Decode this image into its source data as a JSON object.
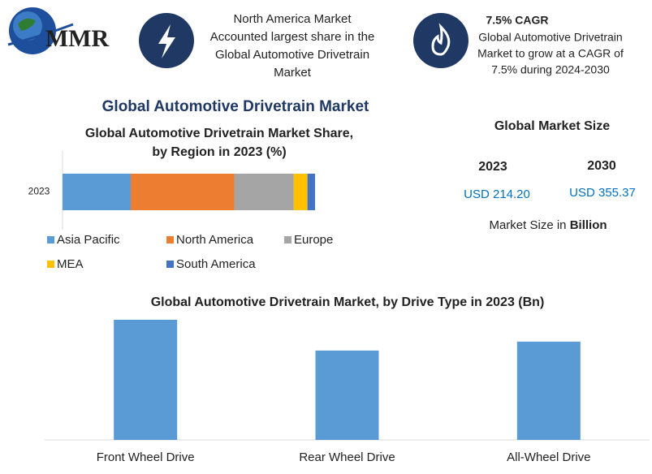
{
  "header": {
    "logo": "MMR",
    "highlight_1": [
      "North America Market",
      "Accounted largest share in the",
      "Global Automotive Drivetrain",
      "Market"
    ],
    "highlight_2_title": "7.5% CAGR",
    "highlight_2": [
      "Global Automotive Drivetrain",
      "Market to grow at a CAGR of",
      "7.5% during 2024-2030"
    ],
    "title": "Global Automotive Drivetrain Market"
  },
  "market_size": {
    "title": "Global Market Size",
    "years": [
      "2023",
      "2030"
    ],
    "values": [
      "USD 214.20",
      "USD 355.37"
    ],
    "note": "Market Size in",
    "note_bold": "Billion"
  },
  "chart_data": [
    {
      "type": "stacked_bar",
      "title": [
        "Global Automotive Drivetrain Market Share,",
        "by Region in 2023 (%)"
      ],
      "categories": [
        "2023"
      ],
      "series": [
        {
          "name": "Asia Pacific",
          "color": "#5b9bd5",
          "values": [
            27
          ]
        },
        {
          "name": "North America",
          "color": "#ed7d31",
          "values": [
            41
          ]
        },
        {
          "name": "Europe",
          "color": "#a5a5a5",
          "values": [
            23.5
          ]
        },
        {
          "name": "MEA",
          "color": "#ffc000",
          "values": [
            5.5
          ]
        },
        {
          "name": "South America",
          "color": "#4472c4",
          "values": [
            3
          ]
        }
      ]
    },
    {
      "type": "bar",
      "title": [
        "Global Automotive Drivetrain Market, by Drive Type  in 2023 (Bn)"
      ],
      "categories": [
        "Front Wheel Drive",
        "Rear Wheel Drive",
        "All-Wheel Drive"
      ],
      "values": [
        83.6,
        62.2,
        68.4
      ],
      "color": "#5b9bd5"
    }
  ]
}
